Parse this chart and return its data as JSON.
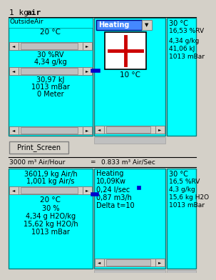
{
  "bg_color": "#d4d0c8",
  "cyan": "#00FFFF",
  "white": "#FFFFFF",
  "blue_connector": "#0000CC",
  "scrollbar_bg": "#c0c0c0",
  "scrollbar_thumb": "#d4d0c8",
  "title_normal": "1 kg ",
  "title_bold": "air",
  "top_left": {
    "label": "OutsideAir",
    "line1": "20 °C",
    "line2": "30 %RV",
    "line3": "4,34 g/kg",
    "line4": "30,97 kJ",
    "line5": "1013 mBar",
    "line6": "0 Meter"
  },
  "top_mid": {
    "dropdown": "Heating",
    "cross_color": "#CC0000",
    "temp_label": "10 °C"
  },
  "top_right": {
    "line1": "30 °C",
    "line2": "16,53 %RV",
    "line3": "4,34 g/kg",
    "line4": "41,06 kJ",
    "line5": "1013 mBar"
  },
  "print_button": "Print_Screen",
  "flow_text1": "3000 m³ Air/Hour",
  "flow_eq": "=",
  "flow_text2": "0.833 m³ Air/Sec",
  "bot_left": {
    "line1": "3601,9 kg Air/h",
    "line2": "1,001 kg Air/s",
    "line3": "20 °C",
    "line4": "30 %",
    "line5": "4,34 g H2O/kg",
    "line6": "15,62 kg H2O/h",
    "line7": "1013 mBar"
  },
  "bot_mid": {
    "label": "Heating",
    "line1": "10,09Kw",
    "line2": "0,24 l/sec",
    "line3": "0,87 m3/h",
    "line4": "Delta t=10"
  },
  "bot_right": {
    "line1": "30 °C",
    "line2": "16,5 %RV",
    "line3": "4,3 g/kg",
    "line4": "15,6 kg H2O",
    "line5": "1013 mBar"
  }
}
